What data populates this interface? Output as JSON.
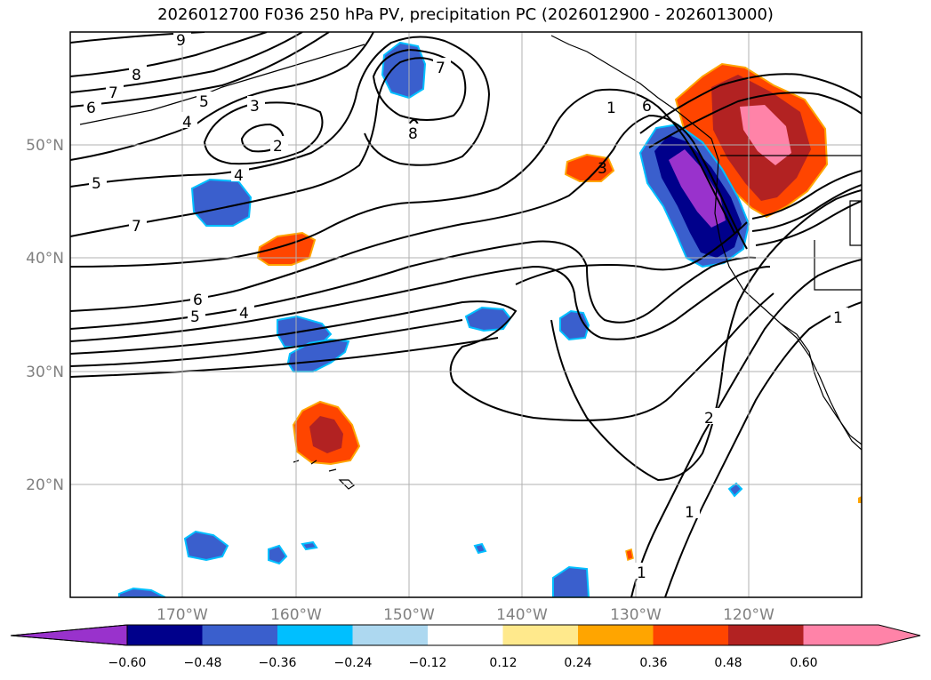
{
  "title": "2026012700 F036 250 hPa PV, precipitation PC (2026012900 - 2026013000)",
  "colors": {
    "levels": [
      "#9932cc",
      "#00008b",
      "#3a5fcd",
      "#00bfff",
      "#add8f0",
      "#ffffff",
      "#ffe98c",
      "#ffa500",
      "#ff4500",
      "#b22222",
      "#ff83a8"
    ],
    "contour": "#000000",
    "grid": "#b0b0b0"
  },
  "colorbar": {
    "ticks": [
      "−0.60",
      "−0.48",
      "−0.36",
      "−0.24",
      "−0.12",
      "0.12",
      "0.24",
      "0.36",
      "0.48",
      "0.60"
    ]
  },
  "axes": {
    "lon_labels": [
      "170°W",
      "160°W",
      "150°W",
      "140°W",
      "130°W",
      "120°W"
    ],
    "lat_labels": [
      "50°N",
      "40°N",
      "30°N",
      "20°N"
    ],
    "lon_range": [
      -180,
      -110
    ],
    "lat_range": [
      10,
      60
    ]
  },
  "contour_labels": [
    "9",
    "8",
    "7",
    "6",
    "5",
    "4",
    "3",
    "2",
    "5",
    "4",
    "7",
    "6",
    "5",
    "4",
    "7",
    "8",
    "3",
    "1",
    "6",
    "2",
    "1",
    "1",
    "1"
  ]
}
